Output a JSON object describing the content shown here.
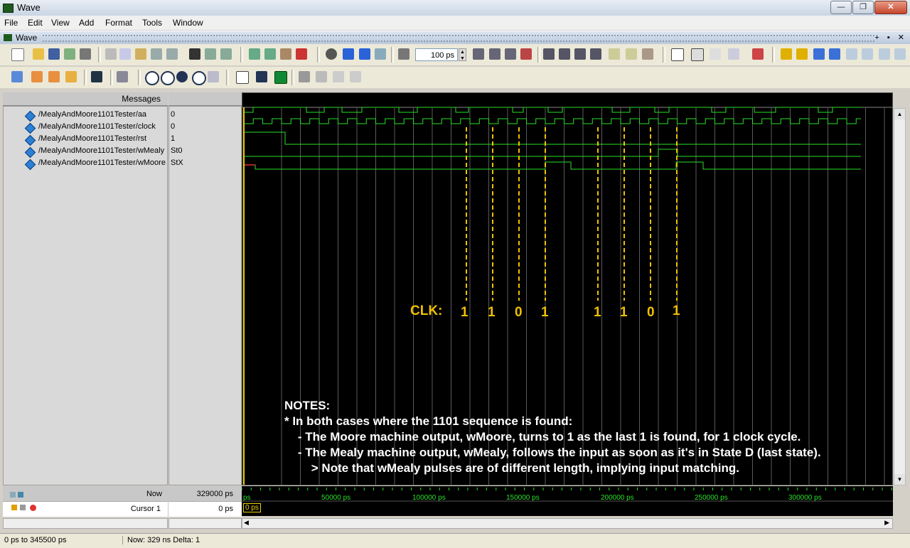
{
  "window": {
    "title": "Wave",
    "btn_min": "—",
    "btn_max": "❐",
    "btn_close": "✕"
  },
  "menu": [
    "File",
    "Edit",
    "View",
    "Add",
    "Format",
    "Tools",
    "Window"
  ],
  "subwindow": {
    "title": "Wave",
    "buttons": "+ ▪ ✕"
  },
  "toolbar": {
    "zoom_value": "100 ps"
  },
  "panes": {
    "messages_header": "Messages"
  },
  "signals": [
    {
      "path": "/MealyAndMoore1101Tester/aa",
      "value": "0"
    },
    {
      "path": "/MealyAndMoore1101Tester/clock",
      "value": "0"
    },
    {
      "path": "/MealyAndMoore1101Tester/rst",
      "value": "1"
    },
    {
      "path": "/MealyAndMoore1101Tester/wMealy",
      "value": "St0"
    },
    {
      "path": "/MealyAndMoore1101Tester/wMoore",
      "value": "StX"
    }
  ],
  "wave_annotations": {
    "clk_label": "CLK:",
    "clk_bits": [
      "1",
      "1",
      "0",
      "1",
      "1",
      "1",
      "0",
      "1"
    ],
    "notes": [
      "NOTES:",
      "* In both cases where the 1101 sequence is found:",
      "    - The Moore machine output, wMoore, turns to 1 as the last 1 is found, for 1 clock cycle.",
      "    - The Mealy machine output, wMealy, follows the input as soon as it's in State D (last state).",
      "        > Note that wMealy pulses are of different length, implying input matching."
    ]
  },
  "status_rows": {
    "now_label": "Now",
    "now_value": "329000 ps",
    "cursor_label": "Cursor 1",
    "cursor_value": "0 ps",
    "cursor_marker": "0 ps"
  },
  "time_axis": {
    "start": "ps",
    "ticks": [
      "50000 ps",
      "100000 ps",
      "150000 ps",
      "200000 ps",
      "250000 ps",
      "300000 ps"
    ]
  },
  "statusbar": {
    "range": "0 ps to 345500 ps",
    "now": "Now: 329 ns  Delta: 1"
  },
  "colors": {
    "wave": "#28e028",
    "annot": "#f0c000",
    "cursor": "#f0d000",
    "grid": "#707070"
  }
}
